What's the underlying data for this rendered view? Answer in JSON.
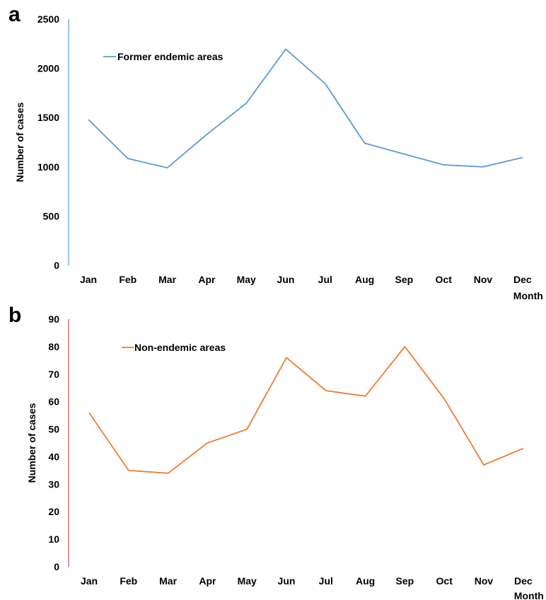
{
  "chart_data": [
    {
      "type": "line",
      "panel_label": "a",
      "categories": [
        "Jan",
        "Feb",
        "Mar",
        "Apr",
        "May",
        "Jun",
        "Jul",
        "Aug",
        "Sep",
        "Oct",
        "Nov",
        "Dec"
      ],
      "series": [
        {
          "name": "Former endemic areas",
          "color": "#5b9bd5",
          "values": [
            1480,
            1085,
            990,
            1330,
            1645,
            2195,
            1845,
            1240,
            1130,
            1020,
            1000,
            1095
          ]
        }
      ],
      "xlabel": "Month",
      "ylabel": "Number of cases",
      "ylim": [
        0,
        2500
      ],
      "yticks": [
        0,
        500,
        1000,
        1500,
        2000,
        2500
      ],
      "grid": false,
      "legend_position": "top-left",
      "axis_color": "#5b9bd5"
    },
    {
      "type": "line",
      "panel_label": "b",
      "categories": [
        "Jan",
        "Feb",
        "Mar",
        "Apr",
        "May",
        "Jun",
        "Jul",
        "Aug",
        "Sep",
        "Oct",
        "Nov",
        "Dec"
      ],
      "series": [
        {
          "name": "Non-endemic areas",
          "color": "#ed7d31",
          "values": [
            56,
            35,
            34,
            45,
            50,
            76,
            64,
            62,
            80,
            61,
            37,
            43
          ]
        }
      ],
      "xlabel": "Month",
      "ylabel": "Number of cases",
      "ylim": [
        0,
        90
      ],
      "yticks": [
        0,
        10,
        20,
        30,
        40,
        50,
        60,
        70,
        80,
        90
      ],
      "grid": false,
      "legend_position": "top-left",
      "axis_color": "#c0504d"
    }
  ]
}
